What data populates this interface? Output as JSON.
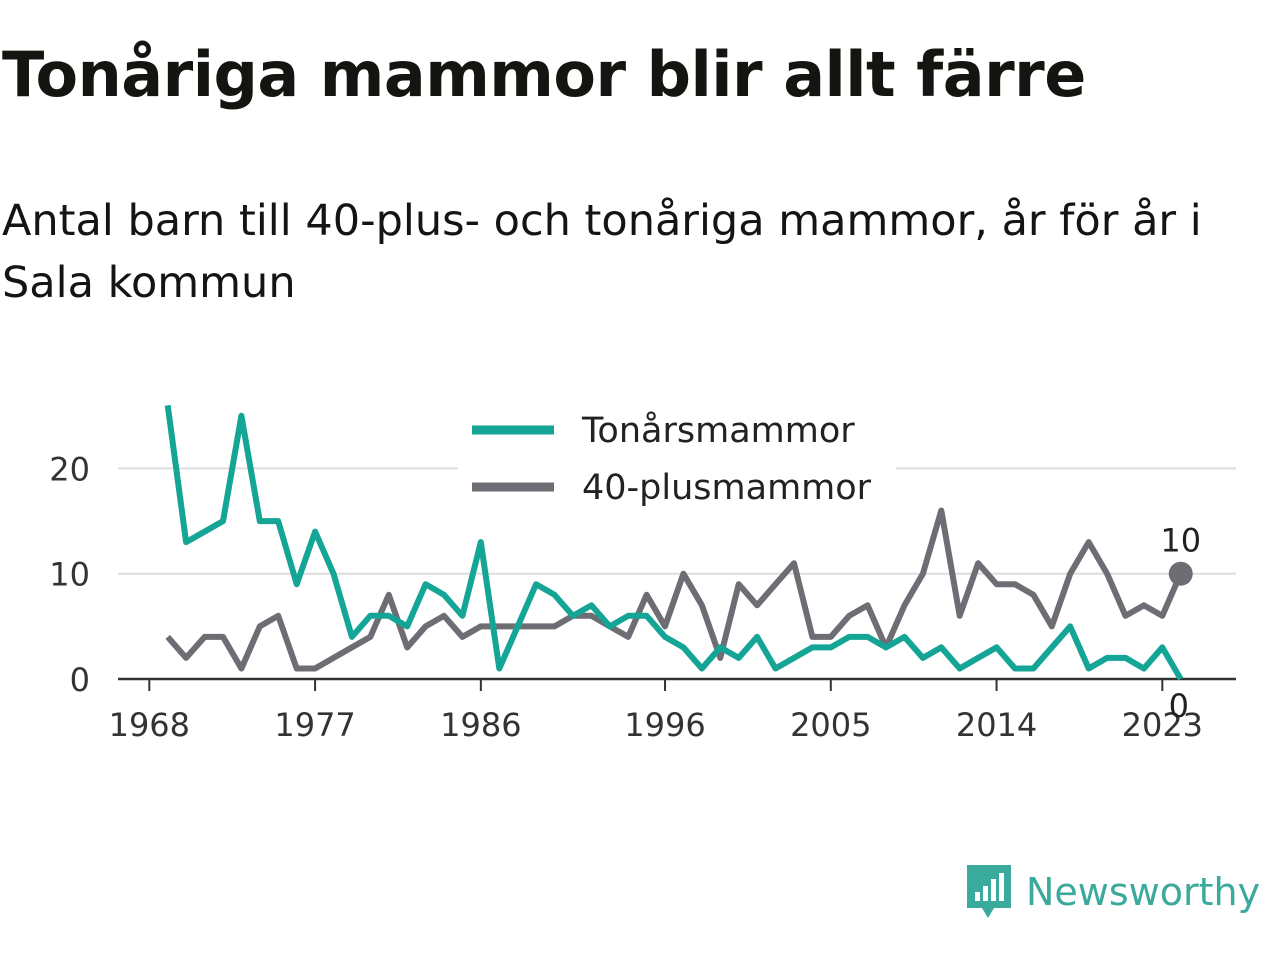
{
  "title": "Tonåriga mammor blir allt färre",
  "subtitle": "Antal barn till 40-plus- och tonåriga mammor, år för år i Sala kommun",
  "brand": {
    "name": "Newsworthy",
    "icon": "newsworthy-logo-icon",
    "color": "#3aaa9c"
  },
  "chart_data": {
    "type": "line",
    "x_ticks": [
      1968,
      1977,
      1986,
      1996,
      2005,
      2014,
      2023
    ],
    "y_ticks": [
      0,
      10,
      20
    ],
    "xlim": [
      1966.3,
      2027
    ],
    "ylim": [
      0,
      26.5
    ],
    "grid": "horizontal",
    "legend_position": "top-center",
    "x": [
      1969,
      1970,
      1971,
      1972,
      1973,
      1974,
      1975,
      1976,
      1977,
      1978,
      1979,
      1980,
      1981,
      1982,
      1983,
      1984,
      1985,
      1986,
      1987,
      1988,
      1989,
      1990,
      1991,
      1992,
      1993,
      1994,
      1995,
      1996,
      1997,
      1998,
      1999,
      2000,
      2001,
      2002,
      2003,
      2004,
      2005,
      2006,
      2007,
      2008,
      2009,
      2010,
      2011,
      2012,
      2013,
      2014,
      2015,
      2016,
      2017,
      2018,
      2019,
      2020,
      2021,
      2022,
      2023,
      2024
    ],
    "series": [
      {
        "name": "Tonårsmammor",
        "color": "#14a596",
        "values": [
          26,
          13,
          14,
          15,
          25,
          15,
          15,
          9,
          14,
          10,
          4,
          6,
          6,
          5,
          9,
          8,
          6,
          13,
          1,
          5,
          9,
          8,
          6,
          7,
          5,
          6,
          6,
          4,
          3,
          1,
          3,
          2,
          4,
          1,
          2,
          3,
          3,
          4,
          4,
          3,
          4,
          2,
          3,
          1,
          2,
          3,
          1,
          1,
          3,
          5,
          1,
          2,
          2,
          1,
          3,
          0
        ],
        "end_label": "0"
      },
      {
        "name": "40-plusmammor",
        "color": "#6d6d73",
        "values": [
          4,
          2,
          4,
          4,
          1,
          5,
          6,
          1,
          1,
          2,
          3,
          4,
          8,
          3,
          5,
          6,
          4,
          5,
          5,
          5,
          5,
          5,
          6,
          6,
          5,
          4,
          8,
          5,
          10,
          7,
          2,
          9,
          7,
          9,
          11,
          4,
          4,
          6,
          7,
          3,
          7,
          10,
          16,
          6,
          11,
          9,
          9,
          8,
          5,
          10,
          13,
          10,
          6,
          7,
          6,
          10
        ],
        "end_label": "10"
      }
    ]
  }
}
